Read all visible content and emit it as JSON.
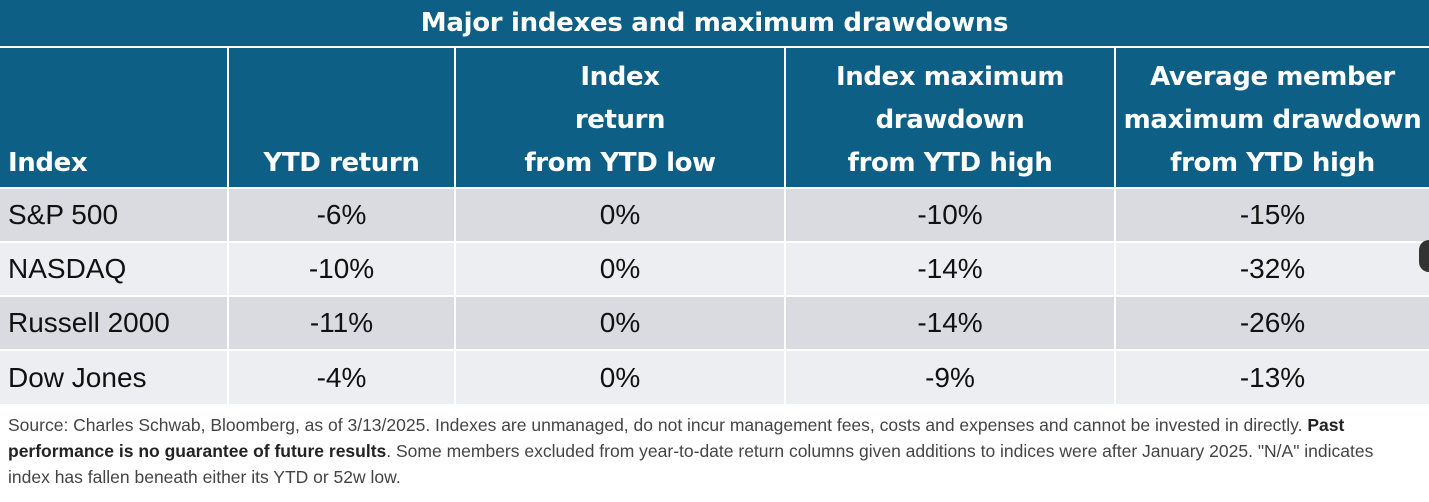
{
  "table": {
    "title": "Major indexes and maximum drawdowns",
    "headers": [
      {
        "lines": [
          "Index"
        ]
      },
      {
        "lines": [
          "YTD return"
        ]
      },
      {
        "lines": [
          "Index",
          "return",
          "from YTD low"
        ]
      },
      {
        "lines": [
          "Index maximum",
          "drawdown",
          "from YTD high"
        ]
      },
      {
        "lines": [
          "Average member",
          "maximum drawdown",
          "from YTD high"
        ]
      }
    ],
    "rows": [
      {
        "cells": [
          "S&P 500",
          "-6%",
          "0%",
          "-10%",
          "-15%"
        ]
      },
      {
        "cells": [
          "NASDAQ",
          "-10%",
          "0%",
          "-14%",
          "-32%"
        ]
      },
      {
        "cells": [
          "Russell 2000",
          "-11%",
          "0%",
          "-14%",
          "-26%"
        ]
      },
      {
        "cells": [
          "Dow Jones",
          "-4%",
          "0%",
          "-9%",
          "-13%"
        ]
      }
    ]
  },
  "footnote": {
    "part1": "Source: Charles Schwab, Bloomberg, as of 3/13/2025. Indexes are unmanaged, do not incur management fees, costs and expenses and cannot be invested in directly. ",
    "bold": "Past performance is no guarantee of future results",
    "part2": ". Some members excluded from year-to-date return columns given additions to indices were after January 2025. \"N/A\" indicates index has fallen beneath either its YTD or 52w low."
  },
  "colors": {
    "header_bg": "#0e5f85",
    "row_shade": "#d9dbe1",
    "row_light": "#edeef2"
  }
}
